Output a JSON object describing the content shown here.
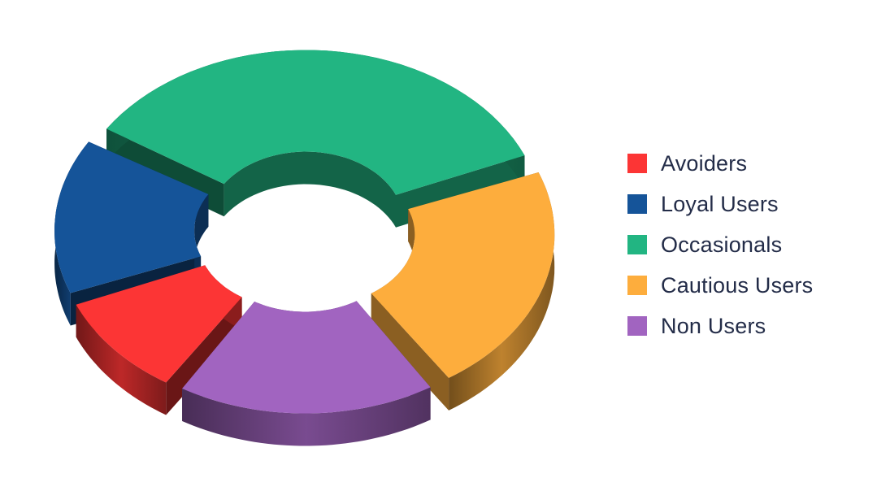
{
  "chart_data": {
    "type": "pie",
    "style": "3d-exploded-donut",
    "categories": [
      "Avoiders",
      "Loyal Users",
      "Occasionals",
      "Cautious Users",
      "Non Users"
    ],
    "values": [
      10,
      15,
      35,
      22,
      18
    ],
    "colors": [
      "#fc3535",
      "#155499",
      "#22b582",
      "#fdad3d",
      "#a164c0"
    ],
    "title": "",
    "legend_position": "right"
  },
  "legend": {
    "items": [
      {
        "label": "Avoiders",
        "color": "#fc3535"
      },
      {
        "label": "Loyal Users",
        "color": "#155499"
      },
      {
        "label": "Occasionals",
        "color": "#22b582"
      },
      {
        "label": "Cautious Users",
        "color": "#fdad3d"
      },
      {
        "label": "Non Users",
        "color": "#a164c0"
      }
    ]
  }
}
